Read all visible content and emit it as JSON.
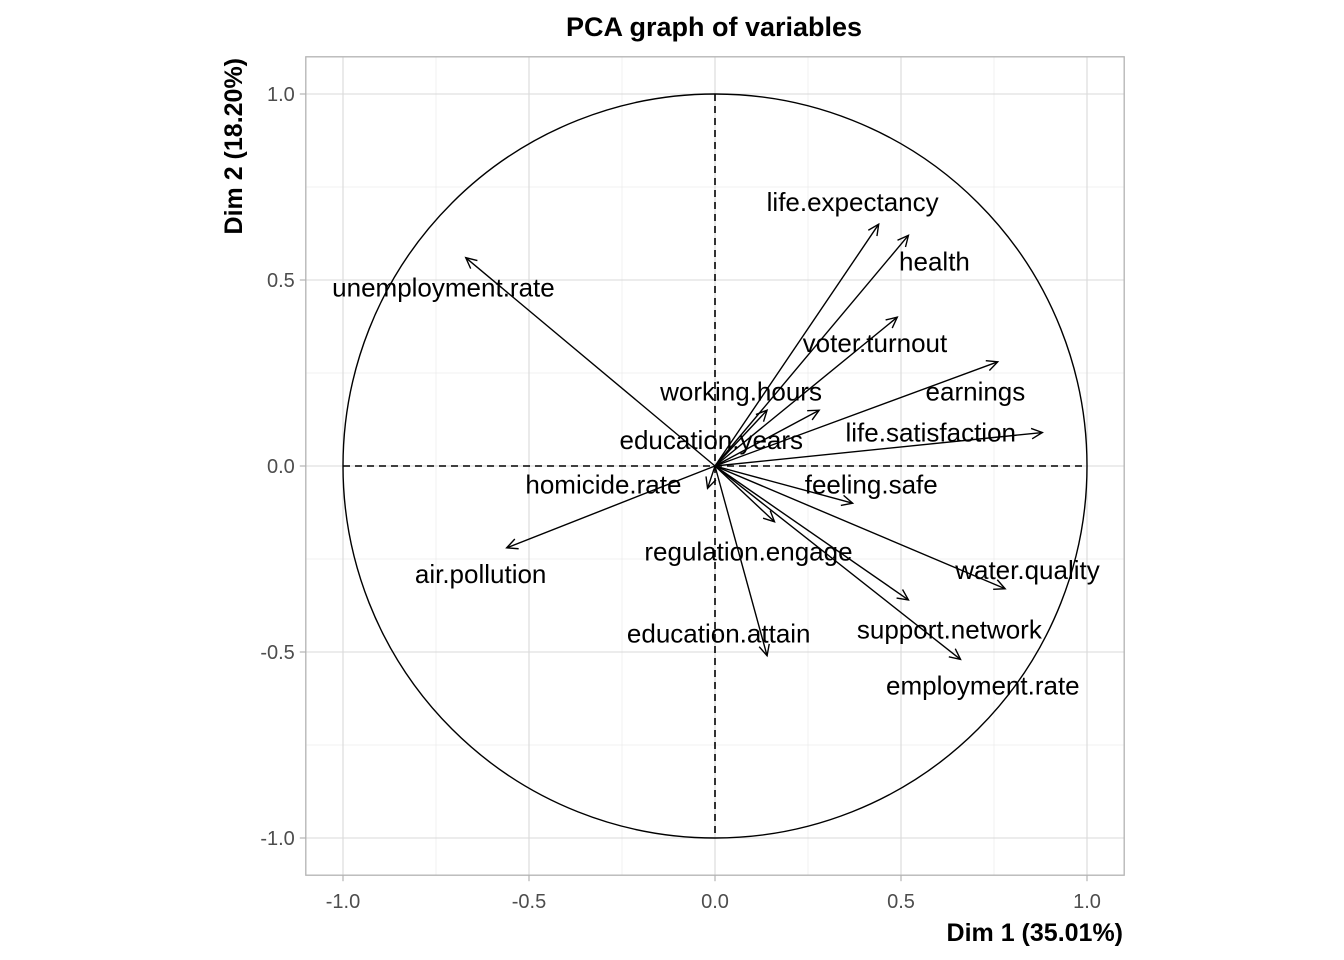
{
  "chart_data": {
    "type": "scatter",
    "subtype": "pca-correlation-circle",
    "title": "PCA graph of variables",
    "xlabel": "Dim 1 (35.01%)",
    "ylabel": "Dim 2 (18.20%)",
    "xlim": [
      -1.1,
      1.1
    ],
    "ylim": [
      -1.1,
      1.1
    ],
    "xticks": [
      {
        "value": -1.0,
        "label": "-1.0"
      },
      {
        "value": -0.5,
        "label": "-0.5"
      },
      {
        "value": 0.0,
        "label": "0.0"
      },
      {
        "value": 0.5,
        "label": "0.5"
      },
      {
        "value": 1.0,
        "label": "1.0"
      }
    ],
    "yticks": [
      {
        "value": -1.0,
        "label": "-1.0"
      },
      {
        "value": -0.5,
        "label": "-0.5"
      },
      {
        "value": 0.0,
        "label": "0.0"
      },
      {
        "value": 0.5,
        "label": "0.5"
      },
      {
        "value": 1.0,
        "label": "1.0"
      }
    ],
    "grid": true,
    "unit_circle": true,
    "reference_lines": "dashed at x=0 and y=0",
    "variables": [
      {
        "name": "unemployment.rate",
        "x": -0.67,
        "y": 0.56,
        "label_x": -0.73,
        "label_y": 0.48
      },
      {
        "name": "life.expectancy",
        "x": 0.44,
        "y": 0.65,
        "label_x": 0.37,
        "label_y": 0.71
      },
      {
        "name": "health",
        "x": 0.52,
        "y": 0.62,
        "label_x": 0.59,
        "label_y": 0.55
      },
      {
        "name": "voter.turnout",
        "x": 0.49,
        "y": 0.4,
        "label_x": 0.43,
        "label_y": 0.33
      },
      {
        "name": "earnings",
        "x": 0.76,
        "y": 0.28,
        "label_x": 0.7,
        "label_y": 0.2
      },
      {
        "name": "working.hours",
        "x": 0.14,
        "y": 0.15,
        "label_x": 0.07,
        "label_y": 0.2
      },
      {
        "name": "education.years",
        "x": 0.28,
        "y": 0.15,
        "label_x": -0.01,
        "label_y": 0.07
      },
      {
        "name": "life.satisfaction",
        "x": 0.88,
        "y": 0.09,
        "label_x": 0.58,
        "label_y": 0.09
      },
      {
        "name": "homicide.rate",
        "x": -0.02,
        "y": -0.06,
        "label_x": -0.3,
        "label_y": -0.05
      },
      {
        "name": "feeling.safe",
        "x": 0.37,
        "y": -0.1,
        "label_x": 0.42,
        "label_y": -0.05
      },
      {
        "name": "air.pollution",
        "x": -0.56,
        "y": -0.22,
        "label_x": -0.63,
        "label_y": -0.29
      },
      {
        "name": "regulation.engage",
        "x": 0.16,
        "y": -0.15,
        "label_x": 0.09,
        "label_y": -0.23
      },
      {
        "name": "water.quality",
        "x": 0.78,
        "y": -0.33,
        "label_x": 0.84,
        "label_y": -0.28
      },
      {
        "name": "support.network",
        "x": 0.52,
        "y": -0.36,
        "label_x": 0.63,
        "label_y": -0.44
      },
      {
        "name": "education.attain",
        "x": 0.14,
        "y": -0.51,
        "label_x": 0.01,
        "label_y": -0.45
      },
      {
        "name": "employment.rate",
        "x": 0.66,
        "y": -0.52,
        "label_x": 0.72,
        "label_y": -0.59
      }
    ]
  }
}
